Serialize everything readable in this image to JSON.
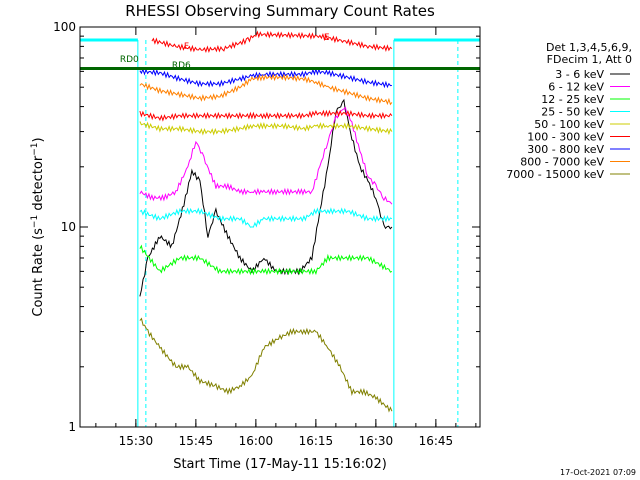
{
  "chart_data": {
    "type": "line",
    "title": "RHESSI Observing Summary Count Rates",
    "xlabel": "Start Time (17-May-11 15:16:02)",
    "ylabel": "Count Rate (s⁻¹ detector⁻¹)",
    "ylabel_main": "Count Rate (s",
    "ylabel_sup1": "−1",
    "ylabel_mid": " detector",
    "ylabel_sup2": "−1",
    "ylabel_end": ")",
    "y_scale": "log",
    "ylim": [
      1,
      100
    ],
    "xlim": [
      "15:16:02",
      "16:56:02"
    ],
    "x_ticks": [
      "15:30",
      "15:45",
      "16:00",
      "16:15",
      "16:30",
      "16:45"
    ],
    "y_ticks": [
      "1",
      "10",
      "100"
    ],
    "grid": false,
    "legend_placement": "right",
    "legend_header": [
      "Det 1,3,4,5,6,9,",
      "FDecim 1, Att 0"
    ],
    "timestamp": "17-Oct-2021 07:09",
    "annotations": [
      "RD0",
      "RD6",
      "F",
      "E"
    ],
    "night_intervals": [
      [
        "15:16:02",
        "15:30:30"
      ],
      [
        "16:34:30",
        "16:56:02"
      ]
    ],
    "saa_marks": [
      "15:32:30",
      "16:50:30"
    ],
    "series": [
      {
        "name": "3 - 6 keV",
        "color": "#000000",
        "x": [
          "15:31",
          "15:33",
          "15:36",
          "15:39",
          "15:42",
          "15:44",
          "15:46",
          "15:48",
          "15:50",
          "15:53",
          "15:56",
          "15:59",
          "16:02",
          "16:05",
          "16:08",
          "16:11",
          "16:14",
          "16:16",
          "16:18",
          "16:20",
          "16:22",
          "16:24",
          "16:26",
          "16:28",
          "16:30",
          "16:32",
          "16:34"
        ],
        "y": [
          4.5,
          7,
          9,
          8,
          13,
          19,
          17,
          9,
          12,
          9,
          7,
          6,
          7,
          6,
          6,
          6,
          7,
          12,
          20,
          38,
          42,
          28,
          20,
          17,
          14,
          10,
          10
        ]
      },
      {
        "name": "6 - 12 keV",
        "color": "#ff00ff",
        "x": [
          "15:31",
          "15:34",
          "15:37",
          "15:40",
          "15:43",
          "15:45",
          "15:47",
          "15:50",
          "15:53",
          "15:56",
          "15:59",
          "16:02",
          "16:05",
          "16:08",
          "16:11",
          "16:14",
          "16:16",
          "16:18",
          "16:20",
          "16:22",
          "16:24",
          "16:26",
          "16:28",
          "16:30",
          "16:32",
          "16:34"
        ],
        "y": [
          15,
          14,
          14,
          15,
          20,
          27,
          22,
          16,
          16,
          15,
          15,
          15,
          15,
          15,
          15,
          15,
          20,
          27,
          35,
          40,
          33,
          24,
          18,
          16,
          14,
          13
        ]
      },
      {
        "name": "12 - 25 keV",
        "color": "#00ff00",
        "x": [
          "15:31",
          "15:36",
          "15:41",
          "15:46",
          "15:51",
          "15:56",
          "15:59",
          "16:02",
          "16:07",
          "16:12",
          "16:15",
          "16:18",
          "16:23",
          "16:28",
          "16:34"
        ],
        "y": [
          8,
          6,
          7,
          7,
          6,
          6,
          6,
          6,
          6,
          6,
          6,
          7,
          7,
          7,
          6
        ]
      },
      {
        "name": "25 - 50 keV",
        "color": "#00ffff",
        "x": [
          "15:31",
          "15:36",
          "15:41",
          "15:46",
          "15:51",
          "15:56",
          "15:59",
          "16:02",
          "16:07",
          "16:12",
          "16:15",
          "16:18",
          "16:23",
          "16:28",
          "16:34"
        ],
        "y": [
          12,
          11,
          12,
          12,
          11,
          11,
          10,
          11,
          11,
          11,
          12,
          12,
          12,
          11,
          11
        ]
      },
      {
        "name": "50 - 100 keV",
        "color": "#cccc00",
        "x": [
          "15:31",
          "15:36",
          "15:41",
          "15:46",
          "15:51",
          "15:56",
          "15:59",
          "16:02",
          "16:07",
          "16:12",
          "16:15",
          "16:18",
          "16:23",
          "16:28",
          "16:34"
        ],
        "y": [
          33,
          31,
          31,
          30,
          30,
          31,
          32,
          32,
          32,
          31,
          32,
          32,
          32,
          31,
          30
        ]
      },
      {
        "name": "100 - 300 keV",
        "color": "#ff0000",
        "x": [
          "15:31",
          "15:36",
          "15:41",
          "15:46",
          "15:51",
          "15:56",
          "15:59",
          "16:02",
          "16:07",
          "16:12",
          "16:15",
          "16:18",
          "16:23",
          "16:28",
          "16:34"
        ],
        "y": [
          37,
          35,
          36,
          36,
          36,
          36,
          36,
          36,
          36,
          36,
          37,
          37,
          37,
          36,
          36
        ]
      },
      {
        "name": "300 - 800 keV",
        "color": "#0000ff",
        "x": [
          "15:31",
          "15:36",
          "15:41",
          "15:46",
          "15:51",
          "15:56",
          "15:59",
          "16:02",
          "16:07",
          "16:12",
          "16:15",
          "16:18",
          "16:23",
          "16:28",
          "16:34"
        ],
        "y": [
          60,
          59,
          55,
          52,
          52,
          55,
          57,
          58,
          58,
          58,
          60,
          59,
          56,
          53,
          51
        ]
      },
      {
        "name": "800 - 7000 keV",
        "color": "#ff8000",
        "x": [
          "15:31",
          "15:36",
          "15:41",
          "15:46",
          "15:51",
          "15:56",
          "15:59",
          "16:02",
          "16:07",
          "16:12",
          "16:15",
          "16:18",
          "16:23",
          "16:28",
          "16:34"
        ],
        "y": [
          52,
          48,
          46,
          44,
          45,
          50,
          55,
          56,
          56,
          55,
          53,
          50,
          47,
          44,
          42
        ]
      },
      {
        "name": "7000 - 15000 keV",
        "color": "#808000",
        "x": [
          "15:31",
          "15:33",
          "15:36",
          "15:40",
          "15:43",
          "15:46",
          "15:50",
          "15:53",
          "15:56",
          "15:59",
          "16:02",
          "16:06",
          "16:09",
          "16:12",
          "16:15",
          "16:18",
          "16:21",
          "16:24",
          "16:27",
          "16:30",
          "16:34"
        ],
        "y": [
          3.5,
          3,
          2.5,
          2,
          2,
          1.7,
          1.6,
          1.5,
          1.6,
          1.8,
          2.5,
          2.8,
          3,
          3,
          3,
          2.5,
          2,
          1.5,
          1.5,
          1.4,
          1.2
        ]
      },
      {
        "name": "Att state",
        "color": "#ff0000",
        "x": [
          "15:34",
          "15:40",
          "15:46",
          "15:52",
          "15:58",
          "16:00",
          "16:16",
          "16:22",
          "16:28",
          "16:34"
        ],
        "y": [
          86,
          80,
          77,
          78,
          86,
          92,
          90,
          85,
          80,
          78
        ]
      },
      {
        "name": "Decimation",
        "color": "#006600",
        "x": [
          "15:16",
          "16:56"
        ],
        "y": [
          62,
          62
        ]
      }
    ]
  }
}
